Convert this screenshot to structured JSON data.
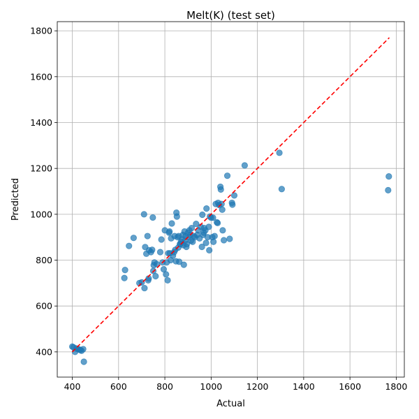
{
  "chart_data": {
    "type": "scatter",
    "title": "Melt(K) (test set)",
    "xlabel": "Actual",
    "ylabel": "Predicted",
    "xlim": [
      335,
      1835
    ],
    "ylim": [
      290,
      1840
    ],
    "xticks": [
      400,
      600,
      800,
      1000,
      1200,
      1400,
      1600,
      1800
    ],
    "yticks": [
      400,
      600,
      800,
      1000,
      1200,
      1400,
      1600,
      1800
    ],
    "grid": true,
    "point_color": "#1f77b4",
    "reference_line": {
      "x": [
        400,
        1770
      ],
      "y": [
        400,
        1770
      ],
      "style": "dashed",
      "color": "#ff0000"
    },
    "points": [
      [
        400,
        423
      ],
      [
        405,
        420
      ],
      [
        412,
        400
      ],
      [
        418,
        415
      ],
      [
        425,
        412
      ],
      [
        430,
        410
      ],
      [
        435,
        408
      ],
      [
        440,
        405
      ],
      [
        447,
        412
      ],
      [
        450,
        357
      ],
      [
        625,
        722
      ],
      [
        628,
        757
      ],
      [
        645,
        862
      ],
      [
        665,
        897
      ],
      [
        690,
        700
      ],
      [
        700,
        703
      ],
      [
        710,
        1000
      ],
      [
        712,
        678
      ],
      [
        715,
        857
      ],
      [
        720,
        828
      ],
      [
        725,
        905
      ],
      [
        728,
        712
      ],
      [
        730,
        720
      ],
      [
        732,
        843
      ],
      [
        740,
        835
      ],
      [
        745,
        845
      ],
      [
        748,
        986
      ],
      [
        750,
        753
      ],
      [
        752,
        778
      ],
      [
        755,
        790
      ],
      [
        760,
        730
      ],
      [
        765,
        783
      ],
      [
        780,
        835
      ],
      [
        785,
        890
      ],
      [
        790,
        790
      ],
      [
        795,
        760
      ],
      [
        800,
        930
      ],
      [
        805,
        738
      ],
      [
        808,
        790
      ],
      [
        812,
        712
      ],
      [
        815,
        830
      ],
      [
        818,
        920
      ],
      [
        820,
        925
      ],
      [
        822,
        830
      ],
      [
        825,
        800
      ],
      [
        827,
        895
      ],
      [
        830,
        960
      ],
      [
        835,
        820
      ],
      [
        840,
        835
      ],
      [
        842,
        905
      ],
      [
        845,
        845
      ],
      [
        848,
        795
      ],
      [
        850,
        1007
      ],
      [
        852,
        990
      ],
      [
        855,
        900
      ],
      [
        858,
        855
      ],
      [
        860,
        905
      ],
      [
        862,
        793
      ],
      [
        865,
        870
      ],
      [
        868,
        870
      ],
      [
        870,
        880
      ],
      [
        875,
        890
      ],
      [
        878,
        910
      ],
      [
        880,
        865
      ],
      [
        882,
        780
      ],
      [
        885,
        925
      ],
      [
        888,
        885
      ],
      [
        890,
        905
      ],
      [
        893,
        858
      ],
      [
        895,
        870
      ],
      [
        900,
        920
      ],
      [
        903,
        900
      ],
      [
        906,
        930
      ],
      [
        910,
        910
      ],
      [
        913,
        885
      ],
      [
        916,
        940
      ],
      [
        920,
        880
      ],
      [
        925,
        905
      ],
      [
        930,
        900
      ],
      [
        935,
        958
      ],
      [
        940,
        910
      ],
      [
        945,
        930
      ],
      [
        950,
        895
      ],
      [
        955,
        945
      ],
      [
        960,
        858
      ],
      [
        962,
        998
      ],
      [
        965,
        910
      ],
      [
        968,
        920
      ],
      [
        970,
        940
      ],
      [
        975,
        930
      ],
      [
        978,
        875
      ],
      [
        980,
        1025
      ],
      [
        985,
        900
      ],
      [
        990,
        945
      ],
      [
        992,
        843
      ],
      [
        995,
        990
      ],
      [
        1000,
        985
      ],
      [
        1005,
        900
      ],
      [
        1008,
        985
      ],
      [
        1010,
        880
      ],
      [
        1015,
        905
      ],
      [
        1020,
        1045
      ],
      [
        1025,
        965
      ],
      [
        1028,
        962
      ],
      [
        1030,
        1050
      ],
      [
        1035,
        1040
      ],
      [
        1040,
        1120
      ],
      [
        1042,
        1108
      ],
      [
        1045,
        1045
      ],
      [
        1048,
        1020
      ],
      [
        1050,
        930
      ],
      [
        1055,
        887
      ],
      [
        1070,
        1168
      ],
      [
        1080,
        893
      ],
      [
        1090,
        1050
      ],
      [
        1092,
        1042
      ],
      [
        1100,
        1082
      ],
      [
        1145,
        1213
      ],
      [
        1295,
        1268
      ],
      [
        1305,
        1110
      ],
      [
        1765,
        1105
      ],
      [
        1768,
        1165
      ]
    ]
  }
}
